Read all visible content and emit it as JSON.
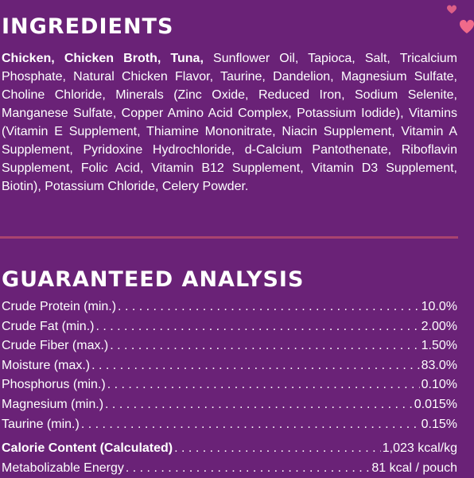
{
  "ingredients": {
    "title": "INGREDIENTS",
    "bold_text": "Chicken, Chicken Broth, Tuna,",
    "text": " Sunflower Oil, Tapioca, Salt, Tricalcium Phosphate, Natural Chicken Flavor, Taurine, Dandelion, Magnesium Sulfate, Choline Chloride, Minerals (Zinc Oxide, Reduced Iron, Sodium Selenite, Manganese Sulfate, Copper Amino Acid Complex, Potassium Iodide), Vitamins (Vitamin E Supplement, Thiamine Mononitrate, Niacin Supplement, Vitamin A Supplement, Pyridoxine Hydrochloride, d-Calcium Pantothenate, Riboflavin Supplement, Folic Acid, Vitamin B12 Supplement, Vitamin D3 Supplement, Biotin), Potassium Chloride, Celery Powder."
  },
  "analysis": {
    "title": "GUARANTEED ANALYSIS",
    "rows": [
      {
        "label": "Crude Protein (min.)",
        "value": "10.0%"
      },
      {
        "label": "Crude Fat (min.)",
        "value": "2.00%"
      },
      {
        "label": "Crude Fiber (max.)",
        "value": "1.50%"
      },
      {
        "label": "Moisture (max.)",
        "value": "83.0%"
      },
      {
        "label": "Phosphorus (min.)",
        "value": "0.10%"
      },
      {
        "label": "Magnesium (min.)",
        "value": "0.015%"
      },
      {
        "label": "Taurine (min.)",
        "value": "0.15%"
      },
      {
        "label": "Calorie Content (Calculated)",
        "value": "1,023 kcal/kg"
      },
      {
        "label": "Metabolizable Energy",
        "value": "81 kcal / pouch"
      }
    ]
  },
  "colors": {
    "background": "#6a2277",
    "divider": "#a9436f",
    "heart": "#f06a8a"
  }
}
